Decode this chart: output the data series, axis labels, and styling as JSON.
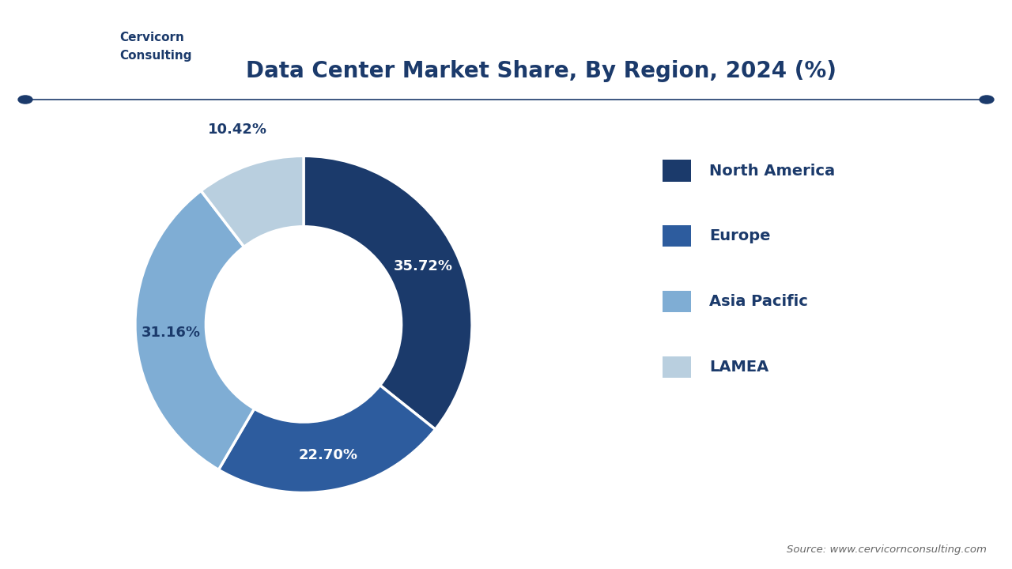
{
  "title": "Data Center Market Share, By Region, 2024 (%)",
  "segments": [
    {
      "label": "North America",
      "value": 35.72,
      "color": "#1b3a6b",
      "text_color": "#ffffff"
    },
    {
      "label": "Europe",
      "value": 22.7,
      "color": "#2d5c9e",
      "text_color": "#ffffff"
    },
    {
      "label": "Asia Pacific",
      "value": 31.16,
      "color": "#7fadd4",
      "text_color": "#1b3a6b"
    },
    {
      "label": "LAMEA",
      "value": 10.42,
      "color": "#b9cfdf",
      "text_color": "#1b3a6b"
    }
  ],
  "legend_colors": [
    "#1b3a6b",
    "#2d5c9e",
    "#7fadd4",
    "#b9cfdf"
  ],
  "legend_labels": [
    "North America",
    "Europe",
    "Asia Pacific",
    "LAMEA"
  ],
  "background_color": "#ffffff",
  "title_color": "#1b3a6b",
  "title_fontsize": 20,
  "source_text": "Source: www.cervicornconsulting.com",
  "source_color": "#666666",
  "separator_line_color": "#1b3a6b",
  "donut_width": 0.42
}
